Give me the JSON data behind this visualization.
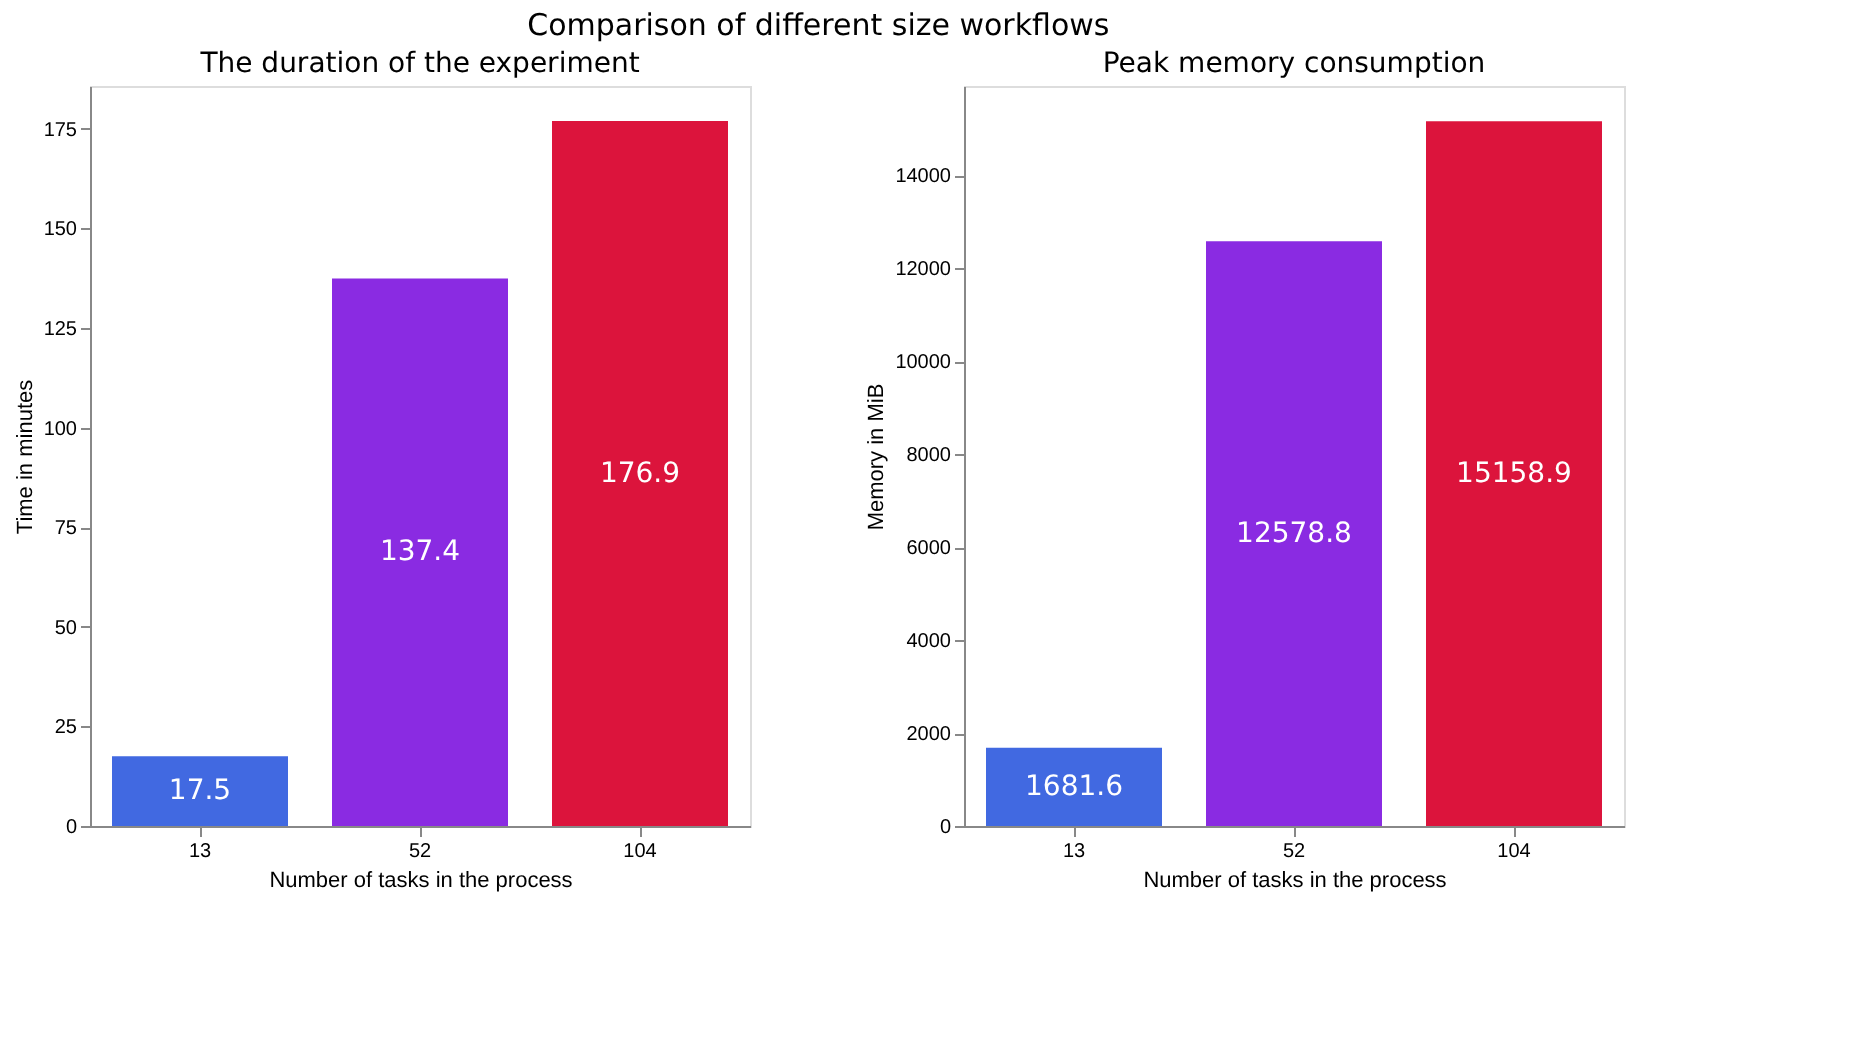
{
  "chart_data": [
    {
      "type": "bar",
      "title": "The duration of the experiment",
      "annotations": [
        "Comparison of different size workflows"
      ],
      "xlabel": "Number of tasks in the process",
      "ylabel": "Time in minutes",
      "categories": [
        "13",
        "52",
        "104"
      ],
      "values": [
        17.5,
        137.4,
        176.9
      ],
      "colors": [
        "#4169e1",
        "#8a2be2",
        "#dc143c"
      ],
      "ylim": [
        0,
        185.7
      ],
      "yticks": [
        0,
        25,
        50,
        75,
        100,
        125,
        150,
        175
      ],
      "data_labels": true,
      "grid": false
    },
    {
      "type": "bar",
      "title": "Peak memory consumption",
      "xlabel": "Number of tasks in the process",
      "ylabel": "Memory in MiB",
      "categories": [
        "13",
        "52",
        "104"
      ],
      "values": [
        1681.6,
        12578.8,
        15158.9
      ],
      "colors": [
        "#4169e1",
        "#8a2be2",
        "#dc143c"
      ],
      "ylim": [
        0,
        15916.8
      ],
      "yticks": [
        0,
        2000,
        4000,
        6000,
        8000,
        10000,
        12000,
        14000
      ],
      "data_labels": true,
      "grid": false
    }
  ]
}
